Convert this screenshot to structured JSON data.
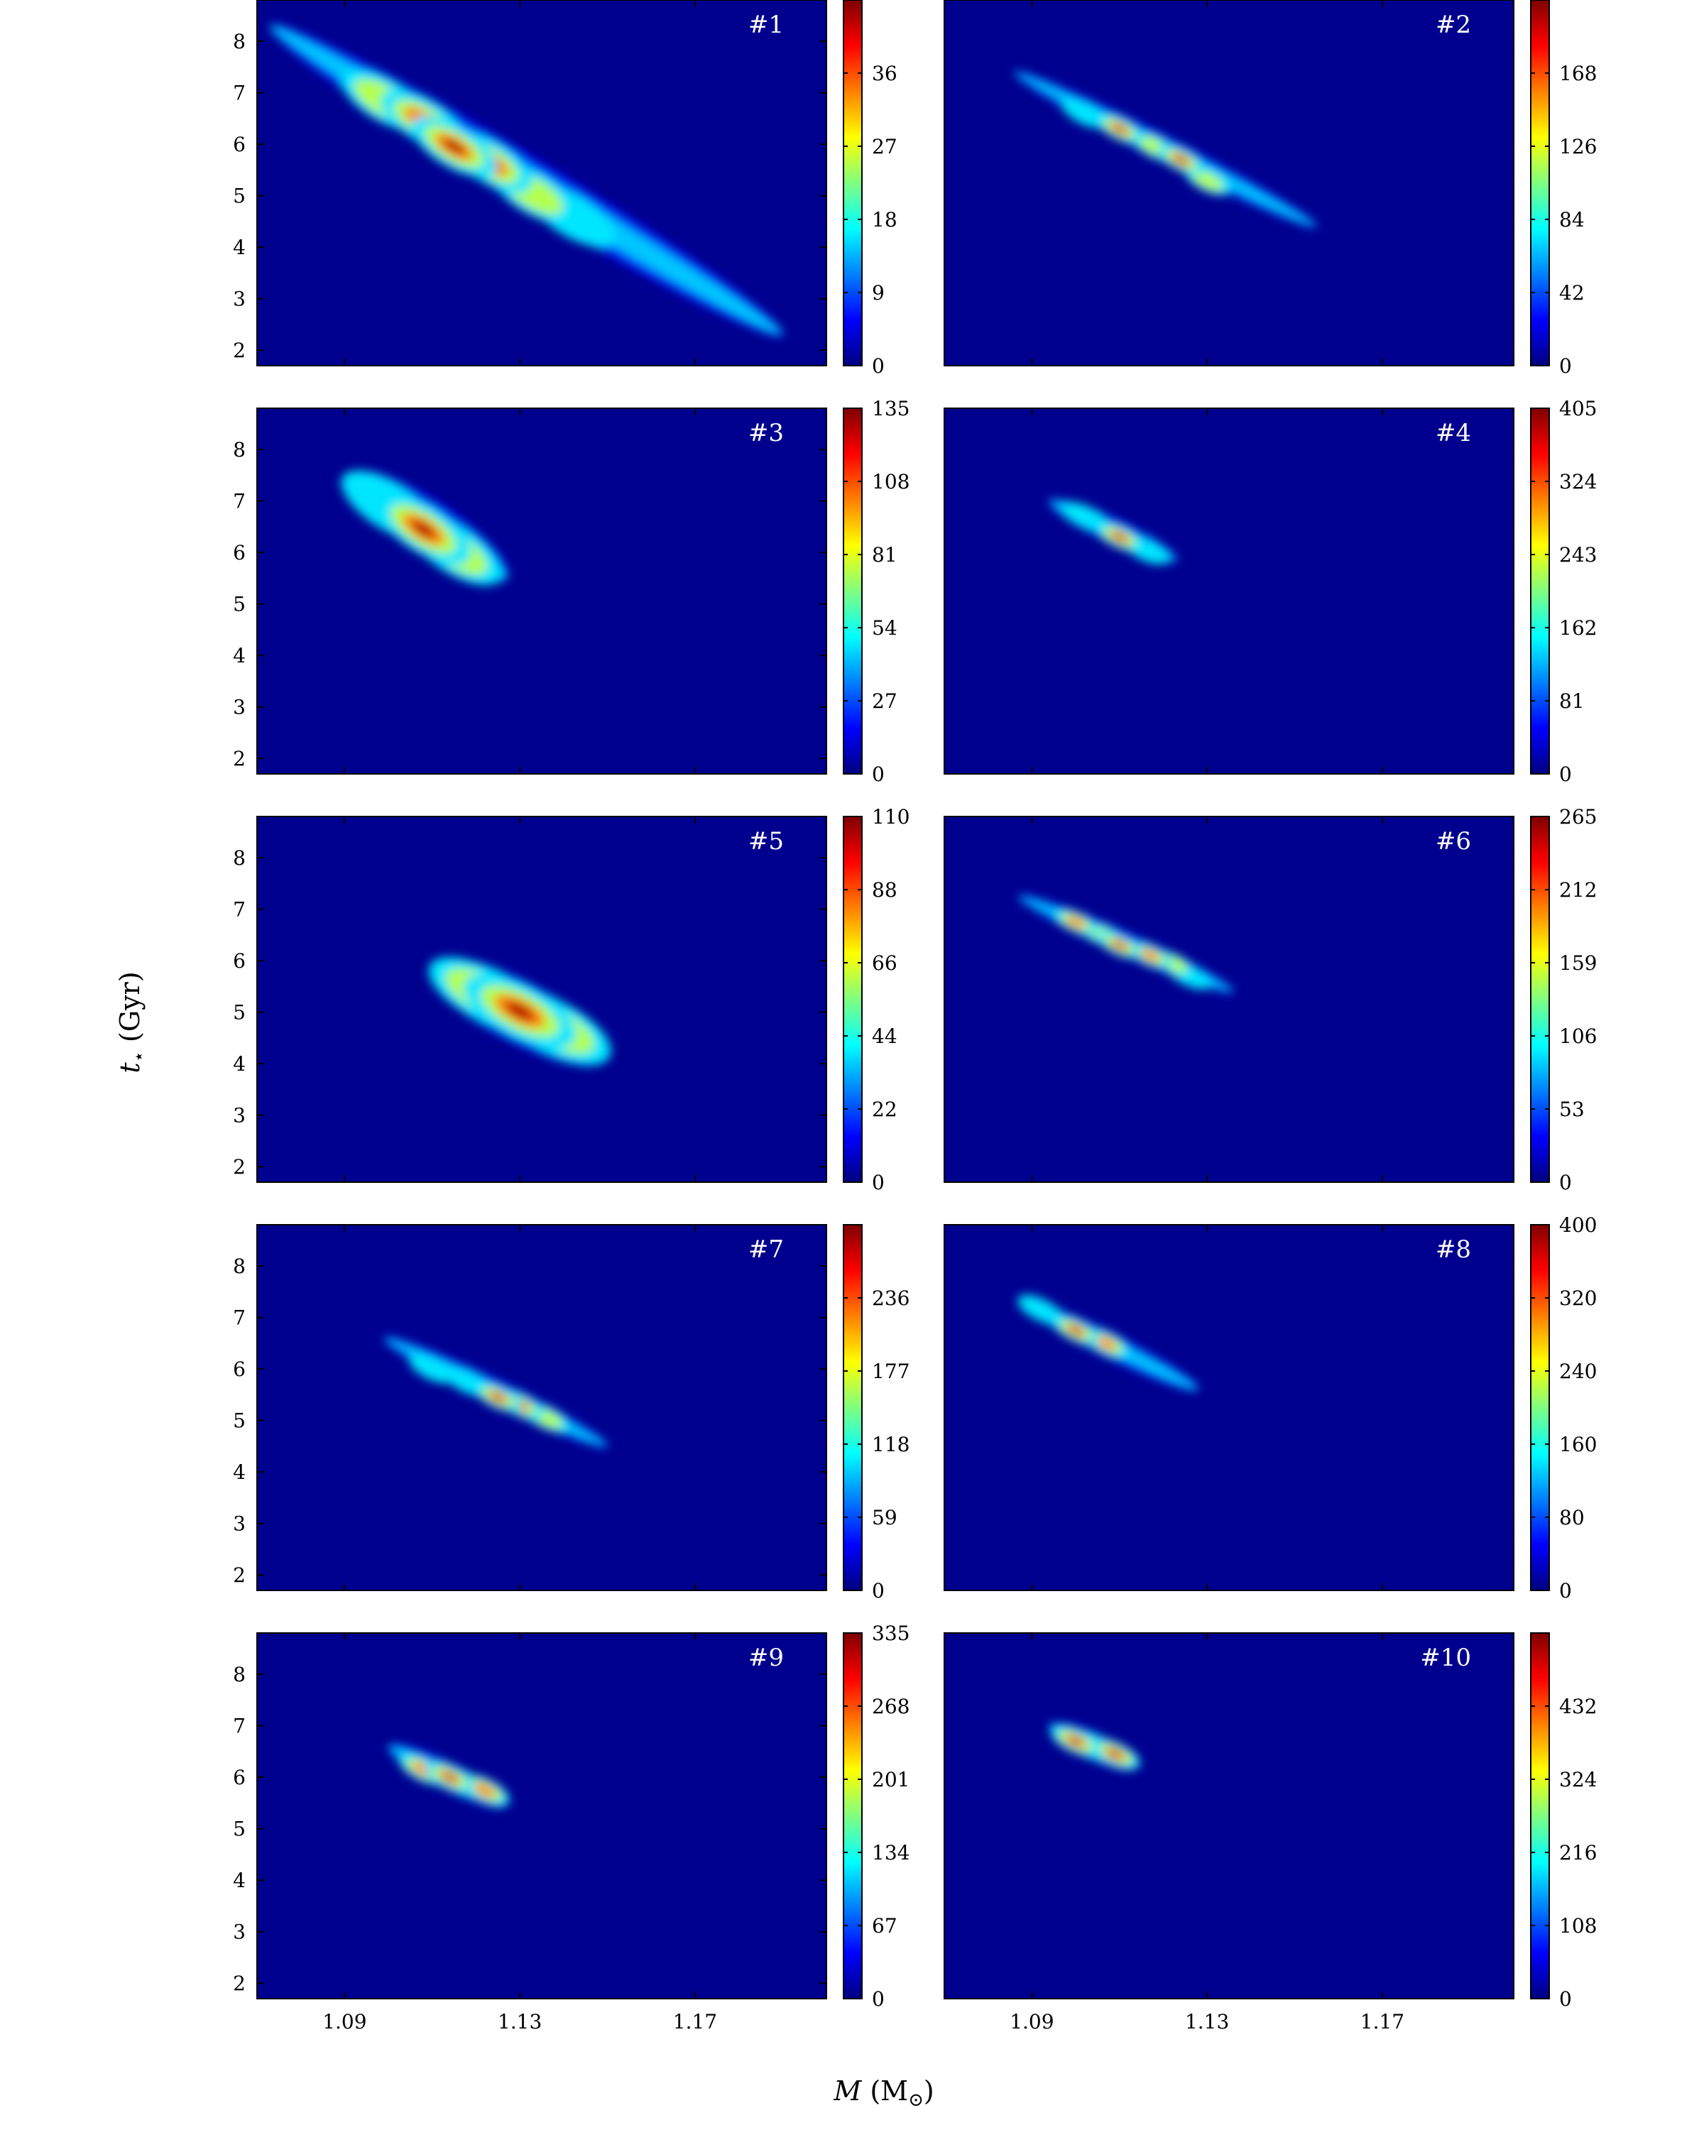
{
  "figure": {
    "xlabel_var": "M",
    "xlabel_unit": " (M",
    "xlabel_sub": "⊙",
    "xlabel_close": ")",
    "ylabel_var": "t",
    "ylabel_sub": "⋆",
    "ylabel_unit": " (Gyr)"
  },
  "colors": {
    "background": "#00008f",
    "colormap": [
      "#00007f",
      "#0000ff",
      "#0080ff",
      "#00ffff",
      "#80ff80",
      "#ffff00",
      "#ff8000",
      "#ff0000",
      "#7f0000"
    ]
  },
  "chart_data": [
    {
      "type": "heatmap",
      "label": "#1",
      "xlim": [
        1.07,
        1.2
      ],
      "ylim": [
        1.7,
        8.8
      ],
      "xticks": [],
      "yticks": [
        2,
        3,
        4,
        5,
        6,
        7,
        8
      ],
      "colorbar": {
        "min": 0,
        "max": 45,
        "ticks": [
          0,
          9,
          18,
          27,
          36
        ]
      },
      "ridge": {
        "x0": 1.073,
        "y0": 8.3,
        "x1": 1.19,
        "y1": 2.3,
        "sigma": 0.25
      },
      "peaks": [
        {
          "x": 1.115,
          "y": 5.95,
          "value": 44
        },
        {
          "x": 1.123,
          "y": 5.65,
          "value": 43
        },
        {
          "x": 1.108,
          "y": 6.45,
          "value": 38
        },
        {
          "x": 1.099,
          "y": 6.85,
          "value": 32
        },
        {
          "x": 1.133,
          "y": 5.05,
          "value": 32
        },
        {
          "x": 1.142,
          "y": 4.6,
          "value": 18
        },
        {
          "x": 1.15,
          "y": 4.0,
          "value": 14
        },
        {
          "x": 1.162,
          "y": 3.4,
          "value": 8
        },
        {
          "x": 1.084,
          "y": 7.55,
          "value": 14
        },
        {
          "x": 1.077,
          "y": 8.05,
          "value": 8
        }
      ]
    },
    {
      "type": "heatmap",
      "label": "#2",
      "xlim": [
        1.07,
        1.2
      ],
      "ylim": [
        1.7,
        8.8
      ],
      "xticks": [],
      "yticks": [],
      "colorbar": {
        "min": 0,
        "max": 210,
        "ticks": [
          0,
          42,
          84,
          126,
          168
        ]
      },
      "ridge": {
        "x0": 1.086,
        "y0": 7.4,
        "x1": 1.155,
        "y1": 4.4,
        "sigma": 0.13
      },
      "peaks": [
        {
          "x": 1.11,
          "y": 6.3,
          "value": 205
        },
        {
          "x": 1.124,
          "y": 5.7,
          "value": 200
        },
        {
          "x": 1.118,
          "y": 5.95,
          "value": 150
        },
        {
          "x": 1.102,
          "y": 6.6,
          "value": 110
        },
        {
          "x": 1.13,
          "y": 5.3,
          "value": 120
        }
      ]
    },
    {
      "type": "heatmap",
      "label": "#3",
      "xlim": [
        1.07,
        1.2
      ],
      "ylim": [
        1.7,
        8.8
      ],
      "xticks": [],
      "yticks": [
        2,
        3,
        4,
        5,
        6,
        7,
        8
      ],
      "colorbar": {
        "min": 0,
        "max": 135,
        "ticks": [
          0,
          27,
          54,
          81,
          108,
          135
        ]
      },
      "ridge": {
        "x0": 1.091,
        "y0": 7.5,
        "x1": 1.127,
        "y1": 5.5,
        "sigma": 0.28
      },
      "peaks": [
        {
          "x": 1.108,
          "y": 6.45,
          "value": 135
        },
        {
          "x": 1.1,
          "y": 6.9,
          "value": 70
        },
        {
          "x": 1.115,
          "y": 6.05,
          "value": 80
        }
      ]
    },
    {
      "type": "heatmap",
      "label": "#4",
      "xlim": [
        1.07,
        1.2
      ],
      "ylim": [
        1.7,
        8.8
      ],
      "xticks": [],
      "yticks": [],
      "colorbar": {
        "min": 0,
        "max": 405,
        "ticks": [
          0,
          81,
          162,
          243,
          324,
          405
        ]
      },
      "ridge": {
        "x0": 1.094,
        "y0": 7.0,
        "x1": 1.123,
        "y1": 5.85,
        "sigma": 0.13
      },
      "peaks": [
        {
          "x": 1.11,
          "y": 6.3,
          "value": 400
        },
        {
          "x": 1.102,
          "y": 6.7,
          "value": 180
        },
        {
          "x": 1.116,
          "y": 6.05,
          "value": 200
        }
      ]
    },
    {
      "type": "heatmap",
      "label": "#5",
      "xlim": [
        1.07,
        1.2
      ],
      "ylim": [
        1.7,
        8.8
      ],
      "xticks": [],
      "yticks": [
        2,
        3,
        4,
        5,
        6,
        7,
        8
      ],
      "colorbar": {
        "min": 0,
        "max": 110,
        "ticks": [
          0,
          22,
          44,
          66,
          88,
          110
        ]
      },
      "ridge": {
        "x0": 1.11,
        "y0": 5.9,
        "x1": 1.15,
        "y1": 4.1,
        "sigma": 0.32
      },
      "peaks": [
        {
          "x": 1.13,
          "y": 5.02,
          "value": 110
        },
        {
          "x": 1.122,
          "y": 5.35,
          "value": 70
        },
        {
          "x": 1.138,
          "y": 4.7,
          "value": 70
        }
      ]
    },
    {
      "type": "heatmap",
      "label": "#6",
      "xlim": [
        1.07,
        1.2
      ],
      "ylim": [
        1.7,
        8.8
      ],
      "xticks": [],
      "yticks": [],
      "colorbar": {
        "min": 0,
        "max": 265,
        "ticks": [
          0,
          53,
          106,
          159,
          212,
          265
        ]
      },
      "ridge": {
        "x0": 1.087,
        "y0": 7.25,
        "x1": 1.136,
        "y1": 5.4,
        "sigma": 0.12
      },
      "peaks": [
        {
          "x": 1.11,
          "y": 6.3,
          "value": 265
        },
        {
          "x": 1.1,
          "y": 6.75,
          "value": 210
        },
        {
          "x": 1.117,
          "y": 6.1,
          "value": 200
        },
        {
          "x": 1.106,
          "y": 6.5,
          "value": 160
        },
        {
          "x": 1.122,
          "y": 5.95,
          "value": 170
        },
        {
          "x": 1.126,
          "y": 5.7,
          "value": 110
        }
      ]
    },
    {
      "type": "heatmap",
      "label": "#7",
      "xlim": [
        1.07,
        1.2
      ],
      "ylim": [
        1.7,
        8.8
      ],
      "xticks": [],
      "yticks": [
        2,
        3,
        4,
        5,
        6,
        7,
        8
      ],
      "colorbar": {
        "min": 0,
        "max": 295,
        "ticks": [
          0,
          59,
          118,
          177,
          236
        ]
      },
      "ridge": {
        "x0": 1.099,
        "y0": 6.6,
        "x1": 1.15,
        "y1": 4.5,
        "sigma": 0.13
      },
      "peaks": [
        {
          "x": 1.125,
          "y": 5.45,
          "value": 290
        },
        {
          "x": 1.13,
          "y": 5.3,
          "value": 280
        },
        {
          "x": 1.118,
          "y": 5.75,
          "value": 160
        },
        {
          "x": 1.136,
          "y": 5.05,
          "value": 170
        },
        {
          "x": 1.11,
          "y": 6.0,
          "value": 110
        }
      ]
    },
    {
      "type": "heatmap",
      "label": "#8",
      "xlim": [
        1.07,
        1.2
      ],
      "ylim": [
        1.7,
        8.8
      ],
      "xticks": [],
      "yticks": [],
      "colorbar": {
        "min": 0,
        "max": 400,
        "ticks": [
          0,
          80,
          160,
          240,
          320,
          400
        ]
      },
      "ridge": {
        "x0": 1.088,
        "y0": 7.3,
        "x1": 1.128,
        "y1": 5.6,
        "sigma": 0.13
      },
      "peaks": [
        {
          "x": 1.1,
          "y": 6.75,
          "value": 390
        },
        {
          "x": 1.107,
          "y": 6.5,
          "value": 370
        },
        {
          "x": 1.092,
          "y": 7.15,
          "value": 160
        },
        {
          "x": 1.113,
          "y": 6.25,
          "value": 130
        }
      ]
    },
    {
      "type": "heatmap",
      "label": "#9",
      "xlim": [
        1.07,
        1.2
      ],
      "ylim": [
        1.7,
        8.8
      ],
      "xticks": [
        1.09,
        1.13,
        1.17
      ],
      "yticks": [
        2,
        3,
        4,
        5,
        6,
        7,
        8
      ],
      "colorbar": {
        "min": 0,
        "max": 335,
        "ticks": [
          0,
          67,
          134,
          201,
          268,
          335
        ]
      },
      "ridge": {
        "x0": 1.1,
        "y0": 6.6,
        "x1": 1.127,
        "y1": 5.45,
        "sigma": 0.14
      },
      "peaks": [
        {
          "x": 1.114,
          "y": 6.0,
          "value": 335
        },
        {
          "x": 1.108,
          "y": 6.15,
          "value": 260
        },
        {
          "x": 1.122,
          "y": 5.75,
          "value": 300
        },
        {
          "x": 1.117,
          "y": 5.9,
          "value": 210
        }
      ]
    },
    {
      "type": "heatmap",
      "label": "#10",
      "xlim": [
        1.07,
        1.2
      ],
      "ylim": [
        1.7,
        8.8
      ],
      "xticks": [
        1.09,
        1.13,
        1.17
      ],
      "yticks": [],
      "colorbar": {
        "min": 0,
        "max": 540,
        "ticks": [
          0,
          108,
          216,
          324,
          432
        ]
      },
      "ridge": {
        "x0": 1.094,
        "y0": 7.0,
        "x1": 1.114,
        "y1": 6.2,
        "sigma": 0.14
      },
      "peaks": [
        {
          "x": 1.1,
          "y": 6.7,
          "value": 530
        },
        {
          "x": 1.109,
          "y": 6.45,
          "value": 520
        },
        {
          "x": 1.104,
          "y": 6.6,
          "value": 250
        }
      ]
    }
  ]
}
